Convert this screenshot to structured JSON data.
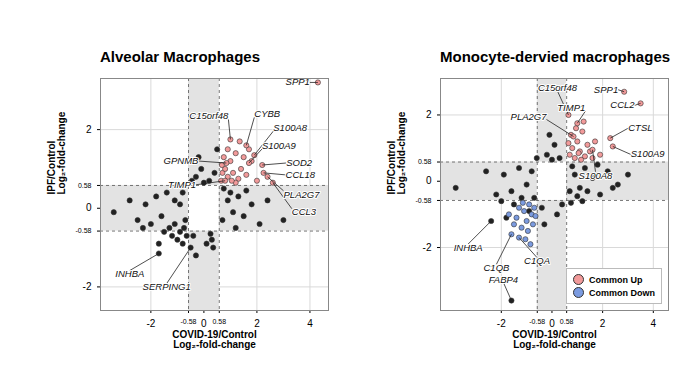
{
  "chart_data": [
    {
      "type": "scatter",
      "title": "Alveolar Macrophages",
      "xlabel": "COVID-19/Control\nLog₂-fold-change",
      "ylabel": "IPF/Control\nLog₂-fold-change",
      "xlim": [
        -3.9,
        4.7
      ],
      "ylim": [
        -2.6,
        3.3
      ],
      "xticks": [
        -2,
        -0.58,
        0,
        0.58,
        2,
        4
      ],
      "yticks": [
        -2,
        -0.58,
        0,
        0.58,
        2
      ],
      "grid": true,
      "cutoff": [
        -0.58,
        0.58
      ],
      "series": [
        {
          "color": "#222222",
          "points": [
            [
              -3.4,
              -0.1
            ],
            [
              -2.8,
              0.2
            ],
            [
              -2.5,
              -0.3
            ],
            [
              -2.2,
              0.1
            ],
            [
              -2.0,
              -0.4
            ],
            [
              -1.8,
              0.3
            ],
            [
              -1.6,
              -0.2
            ],
            [
              -1.5,
              -0.6
            ],
            [
              -1.3,
              -0.5
            ],
            [
              -1.2,
              -0.7
            ],
            [
              -1.1,
              -0.4
            ],
            [
              -1.0,
              -0.8
            ],
            [
              -0.9,
              -0.6
            ],
            [
              -0.8,
              -0.9
            ],
            [
              -0.75,
              -0.5
            ],
            [
              -0.7,
              -0.3
            ],
            [
              -0.65,
              -0.7
            ],
            [
              -1.4,
              0.4
            ],
            [
              -1.7,
              -0.9
            ],
            [
              -2.3,
              -0.5
            ],
            [
              -0.9,
              0.1
            ],
            [
              -1.1,
              0.2
            ],
            [
              -0.8,
              0.4
            ],
            [
              0.7,
              -0.3
            ],
            [
              0.9,
              0.2
            ],
            [
              1.1,
              -0.1
            ],
            [
              1.3,
              0.3
            ],
            [
              1.5,
              -0.2
            ],
            [
              1.8,
              0.1
            ],
            [
              2.1,
              -0.4
            ],
            [
              0.75,
              0.5
            ],
            [
              1.0,
              0.4
            ],
            [
              1.2,
              -0.5
            ],
            [
              -0.3,
              0.8
            ],
            [
              -0.1,
              1.0
            ],
            [
              0.2,
              0.7
            ],
            [
              0.4,
              0.9
            ],
            [
              -0.4,
              -0.7
            ],
            [
              0.1,
              -0.9
            ],
            [
              0.3,
              -0.8
            ],
            [
              -0.2,
              1.3
            ],
            [
              0.0,
              0.65
            ],
            [
              0.35,
              -1.0
            ],
            [
              -0.45,
              0.7
            ],
            [
              0.25,
              -0.65
            ],
            [
              -0.3,
              -1.2
            ],
            [
              0.5,
              1.5
            ],
            [
              1.6,
              0.45
            ],
            [
              2.4,
              0.2
            ],
            [
              3.0,
              -0.3
            ],
            [
              -1.7,
              -1.15,
              "INHBA"
            ],
            [
              -0.5,
              -1.0,
              "SERPING1"
            ]
          ]
        },
        {
          "color": "#f29a9a",
          "points": [
            [
              0.65,
              0.7
            ],
            [
              0.7,
              0.9
            ],
            [
              0.8,
              1.0
            ],
            [
              0.9,
              0.8
            ],
            [
              1.0,
              1.2
            ],
            [
              1.1,
              0.9
            ],
            [
              1.2,
              1.4
            ],
            [
              1.3,
              0.75
            ],
            [
              1.4,
              1.0
            ],
            [
              1.5,
              1.3
            ],
            [
              0.75,
              1.3
            ],
            [
              0.9,
              1.5
            ],
            [
              1.2,
              0.65
            ],
            [
              1.6,
              0.85
            ],
            [
              1.8,
              1.2
            ],
            [
              2.0,
              0.7
            ],
            [
              1.7,
              1.5
            ],
            [
              1.05,
              0.7
            ],
            [
              0.68,
              1.1
            ],
            [
              1.35,
              1.7
            ],
            [
              4.3,
              3.2,
              "SPP1"
            ],
            [
              1.0,
              1.75,
              "C15orf48"
            ],
            [
              1.6,
              1.6,
              "CYBB"
            ],
            [
              1.9,
              1.35,
              "S100A8"
            ],
            [
              1.7,
              1.15,
              "S100A9"
            ],
            [
              2.2,
              1.1,
              "SOD2"
            ],
            [
              2.25,
              0.9,
              "CCL18"
            ],
            [
              2.4,
              0.8,
              "PLA2G7"
            ],
            [
              2.6,
              0.65,
              "CCL3"
            ],
            [
              0.85,
              1.15,
              "GPNMB"
            ],
            [
              0.8,
              0.7,
              "TIMP1"
            ]
          ]
        }
      ]
    },
    {
      "type": "scatter",
      "title": "Monocyte-dervied macrophages",
      "xlabel": "COVID-19/Control\nLog₂-fold-change",
      "ylabel": "IPF/Control\nLog₂-fold-change",
      "xlim": [
        -4.4,
        4.6
      ],
      "ylim": [
        -3.9,
        3.1
      ],
      "xticks": [
        -2,
        -0.58,
        0,
        0.58,
        2,
        4
      ],
      "yticks": [
        -2,
        -0.58,
        0,
        0.58,
        2
      ],
      "grid": true,
      "cutoff": [
        -0.58,
        0.58
      ],
      "legend": "bottom-right",
      "series": [
        {
          "color": "#222222",
          "points": [
            [
              -3.8,
              -0.2
            ],
            [
              -2.6,
              0.3
            ],
            [
              -2.2,
              -0.4
            ],
            [
              -1.9,
              0.2
            ],
            [
              -1.6,
              -0.3
            ],
            [
              -1.3,
              0.4
            ],
            [
              -1.0,
              -0.1
            ],
            [
              -0.8,
              0.3
            ],
            [
              -0.7,
              -0.5
            ],
            [
              0.7,
              -0.3
            ],
            [
              0.9,
              0.2
            ],
            [
              1.1,
              -0.2
            ],
            [
              1.3,
              0.4
            ],
            [
              1.6,
              0.1
            ],
            [
              1.9,
              -0.4
            ],
            [
              2.2,
              0.3
            ],
            [
              2.6,
              -0.1
            ],
            [
              3.0,
              0.2
            ],
            [
              0.8,
              0.45
            ],
            [
              1.0,
              -0.45
            ],
            [
              1.4,
              -0.3
            ],
            [
              1.8,
              0.5
            ],
            [
              2.4,
              -0.2
            ],
            [
              -0.2,
              0.8
            ],
            [
              0.1,
              1.1
            ],
            [
              0.3,
              0.7
            ],
            [
              -0.4,
              -0.8
            ],
            [
              0.2,
              -1.0
            ],
            [
              -0.1,
              1.4
            ],
            [
              0.4,
              -0.7
            ],
            [
              -0.3,
              -1.3
            ],
            [
              0.0,
              0.65
            ],
            [
              -1.2,
              -0.5
            ],
            [
              -1.5,
              -0.7
            ],
            [
              -0.9,
              -0.9
            ],
            [
              -2.0,
              -0.6
            ],
            [
              -0.6,
              0.7
            ],
            [
              1.2,
              -0.6
            ],
            [
              0.75,
              -0.65
            ],
            [
              -1.8,
              -1.1
            ],
            [
              -2.4,
              -1.2,
              "INHBA"
            ],
            [
              -1.6,
              -3.6,
              "FABP4"
            ]
          ]
        },
        {
          "name": "Common Up",
          "color": "#f29a9a",
          "points": [
            [
              0.7,
              0.8
            ],
            [
              0.8,
              1.0
            ],
            [
              0.9,
              0.7
            ],
            [
              1.0,
              1.2
            ],
            [
              1.1,
              0.9
            ],
            [
              1.2,
              1.5
            ],
            [
              1.3,
              0.75
            ],
            [
              1.4,
              1.1
            ],
            [
              0.75,
              1.4
            ],
            [
              0.95,
              1.6
            ],
            [
              1.15,
              0.65
            ],
            [
              1.5,
              0.9
            ],
            [
              1.7,
              1.2
            ],
            [
              1.9,
              0.8
            ],
            [
              0.65,
              1.15
            ],
            [
              1.25,
              1.8
            ],
            [
              1.05,
              0.85
            ],
            [
              1.6,
              0.7
            ],
            [
              2.85,
              2.7,
              "SPP1"
            ],
            [
              3.5,
              2.35,
              "CCL2"
            ],
            [
              0.65,
              2.0,
              "C15orf48"
            ],
            [
              0.85,
              1.35,
              "PLA2G7"
            ],
            [
              1.0,
              1.75,
              "TIMP1"
            ],
            [
              2.3,
              1.3,
              "CTSL"
            ],
            [
              2.4,
              1.05,
              "S100A9"
            ],
            [
              1.6,
              0.95,
              "S100A8"
            ]
          ]
        },
        {
          "name": "Common Down",
          "color": "#7b9be0",
          "points": [
            [
              -0.7,
              -0.8
            ],
            [
              -0.8,
              -1.0
            ],
            [
              -0.9,
              -0.7
            ],
            [
              -1.0,
              -1.2
            ],
            [
              -1.1,
              -0.9
            ],
            [
              -1.2,
              -1.4
            ],
            [
              -1.3,
              -0.8
            ],
            [
              -1.4,
              -1.1
            ],
            [
              -0.75,
              -1.3
            ],
            [
              -0.95,
              -1.5
            ],
            [
              -1.5,
              -1.3
            ],
            [
              -1.7,
              -1.0
            ],
            [
              -1.15,
              -0.65
            ],
            [
              -0.65,
              -1.05
            ],
            [
              -1.05,
              -1.75
            ],
            [
              -0.85,
              -1.9
            ],
            [
              -1.6,
              -1.6,
              "C1QB"
            ],
            [
              -1.3,
              -1.7,
              "C1QA"
            ]
          ]
        }
      ]
    }
  ]
}
